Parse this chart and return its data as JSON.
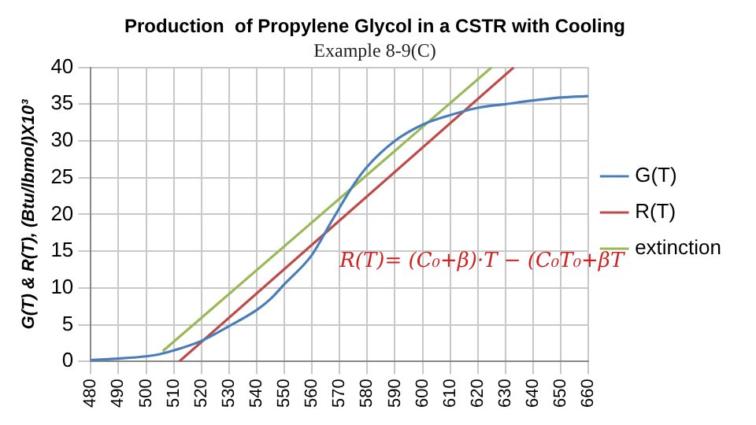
{
  "chart_data": {
    "type": "line",
    "title": "Production  of Propylene Glycol in a CSTR with Cooling",
    "subtitle": "Example 8-9(C)",
    "ylabel": "G(T) & R(T), (Btu/lbmol)X10³",
    "series": [
      {
        "name": "G(T)",
        "color": "#4a7ebb",
        "x": [
          480,
          490,
          500,
          505,
          510,
          520,
          530,
          540,
          545,
          550,
          560,
          567,
          575,
          580,
          590,
          600,
          610,
          620,
          630,
          640,
          650,
          660
        ],
        "values": [
          0.2,
          0.4,
          0.7,
          1.0,
          1.5,
          2.8,
          4.8,
          7,
          8.5,
          10.5,
          14.5,
          19,
          24,
          26.5,
          30,
          32.2,
          33.5,
          34.5,
          35,
          35.5,
          35.9,
          36.1
        ]
      },
      {
        "name": "R(T)",
        "color": "#be4b48",
        "x": [
          512,
          633
        ],
        "values": [
          0,
          40
        ]
      },
      {
        "name": "extinction",
        "color": "#98b954",
        "x": [
          506,
          625
        ],
        "values": [
          1.4,
          40
        ]
      }
    ],
    "xlim": [
      480,
      660
    ],
    "xticks": [
      480,
      490,
      500,
      510,
      520,
      530,
      540,
      550,
      560,
      570,
      580,
      590,
      600,
      610,
      620,
      630,
      640,
      650,
      660
    ],
    "ylim": [
      0,
      40
    ],
    "yticks": [
      0,
      5,
      10,
      15,
      20,
      25,
      30,
      35,
      40
    ],
    "grid": true,
    "legend": "right",
    "marker": "none",
    "line_style": "solid",
    "annotations": [
      "R(T)= (C₀+β)·T − (C₀T₀+βT"
    ]
  }
}
